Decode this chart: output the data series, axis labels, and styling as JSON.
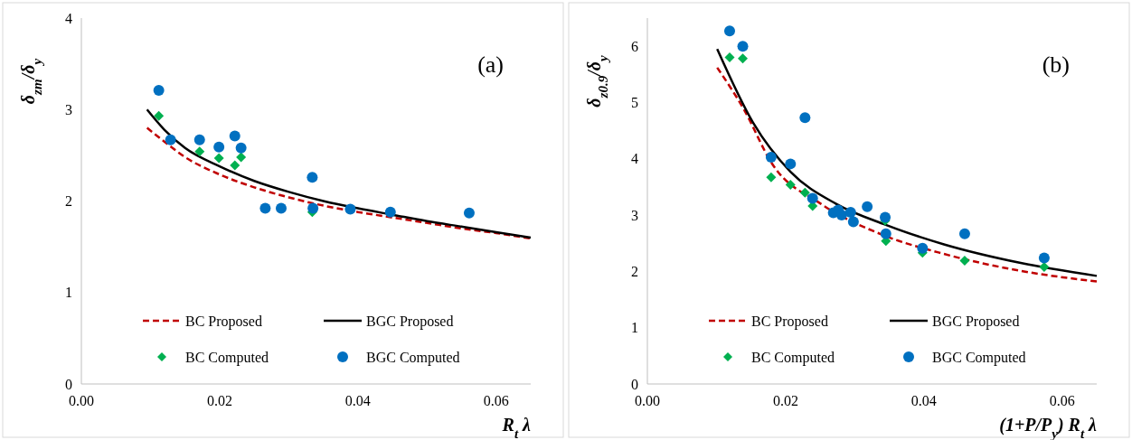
{
  "chart_data": [
    {
      "type": "scatter",
      "title": "(a)",
      "xlabel": "R$_{t}$ λ",
      "ylabel": "δ$_{zm}$/δ$_{y}$",
      "xlim": [
        0,
        0.065
      ],
      "ylim": [
        0,
        4
      ],
      "xticks": [
        {
          "value": 0,
          "label": "0.00"
        },
        {
          "value": 0.02,
          "label": "0.02"
        },
        {
          "value": 0.04,
          "label": "0.04"
        },
        {
          "value": 0.06,
          "label": "0.06"
        }
      ],
      "yticks": [
        0,
        1,
        2,
        3,
        4
      ],
      "grid": false,
      "legend": "bottom",
      "series": [
        {
          "name": "BC Proposed",
          "type": "line",
          "color": "#c00000",
          "line_style": "dashed",
          "marker": "none",
          "x": [
            0.0095,
            0.012,
            0.015,
            0.02,
            0.025,
            0.03,
            0.035,
            0.04,
            0.045,
            0.05,
            0.055,
            0.06,
            0.065
          ],
          "values": [
            2.8,
            2.65,
            2.48,
            2.29,
            2.15,
            2.04,
            1.95,
            1.88,
            1.82,
            1.76,
            1.7,
            1.65,
            1.59
          ]
        },
        {
          "name": "BGC Proposed",
          "type": "line",
          "color": "#000000",
          "line_style": "solid",
          "marker": "none",
          "x": [
            0.0095,
            0.012,
            0.015,
            0.02,
            0.025,
            0.03,
            0.035,
            0.04,
            0.045,
            0.05,
            0.055,
            0.06,
            0.065
          ],
          "values": [
            3.0,
            2.78,
            2.58,
            2.38,
            2.22,
            2.1,
            2.0,
            1.92,
            1.85,
            1.78,
            1.72,
            1.66,
            1.6
          ]
        },
        {
          "name": "BC Computed",
          "color": "#00b050",
          "marker": "diamond",
          "x": [
            0.0112,
            0.0171,
            0.0199,
            0.0222,
            0.0231,
            0.0334
          ],
          "values": [
            2.93,
            2.54,
            2.47,
            2.39,
            2.48,
            1.88
          ]
        },
        {
          "name": "BGC Computed",
          "color": "#0070c0",
          "marker": "circle",
          "x": [
            0.0112,
            0.0129,
            0.0171,
            0.0199,
            0.0222,
            0.0231,
            0.0266,
            0.0289,
            0.0334,
            0.0335,
            0.0389,
            0.0447,
            0.0561
          ],
          "values": [
            3.21,
            2.67,
            2.67,
            2.59,
            2.71,
            2.58,
            1.92,
            1.92,
            2.26,
            1.92,
            1.91,
            1.88,
            1.87
          ]
        }
      ]
    },
    {
      "type": "scatter",
      "title": "(b)",
      "xlabel": "(1+P/P$_{y}$) R$_{t}$ λ",
      "ylabel": "δ$_{z0.9}$/δ$_{y}$",
      "xlim": [
        0,
        0.065
      ],
      "ylim": [
        0,
        6.5
      ],
      "xticks": [
        {
          "value": 0,
          "label": "0.00"
        },
        {
          "value": 0.02,
          "label": "0.02"
        },
        {
          "value": 0.04,
          "label": "0.04"
        },
        {
          "value": 0.06,
          "label": "0.06"
        }
      ],
      "yticks": [
        0,
        1,
        2,
        3,
        4,
        5,
        6
      ],
      "grid": false,
      "legend": "bottom",
      "series": [
        {
          "name": "BC Proposed",
          "type": "line",
          "color": "#c00000",
          "line_style": "dashed",
          "marker": "none",
          "x": [
            0.0101,
            0.014,
            0.018,
            0.0251,
            0.034,
            0.0429,
            0.054,
            0.065
          ],
          "values": [
            5.62,
            4.87,
            3.92,
            3.2,
            2.65,
            2.31,
            2.01,
            1.82
          ]
        },
        {
          "name": "BGC Proposed",
          "type": "line",
          "color": "#000000",
          "line_style": "solid",
          "marker": "none",
          "x": [
            0.0101,
            0.0153,
            0.0207,
            0.0273,
            0.0344,
            0.0429,
            0.054,
            0.065
          ],
          "values": [
            5.95,
            4.64,
            3.77,
            3.2,
            2.83,
            2.48,
            2.15,
            1.92
          ]
        },
        {
          "name": "BC Computed",
          "color": "#00b050",
          "marker": "diamond",
          "x": [
            0.0119,
            0.0138,
            0.0179,
            0.0207,
            0.0228,
            0.0239,
            0.0344,
            0.0345,
            0.0398,
            0.0459,
            0.0574
          ],
          "values": [
            5.8,
            5.78,
            3.67,
            3.54,
            3.4,
            3.16,
            2.9,
            2.54,
            2.33,
            2.19,
            2.08
          ]
        },
        {
          "name": "BGC Computed",
          "color": "#0070c0",
          "marker": "circle",
          "x": [
            0.0119,
            0.0138,
            0.0228,
            0.0179,
            0.0207,
            0.0239,
            0.0269,
            0.0276,
            0.0281,
            0.0294,
            0.0298,
            0.0318,
            0.0344,
            0.0345,
            0.0398,
            0.0459,
            0.0574
          ],
          "values": [
            6.27,
            6.0,
            4.73,
            4.03,
            3.91,
            3.3,
            3.04,
            3.09,
            3.0,
            3.05,
            2.88,
            3.15,
            2.96,
            2.67,
            2.41,
            2.67,
            2.24
          ]
        }
      ]
    }
  ]
}
